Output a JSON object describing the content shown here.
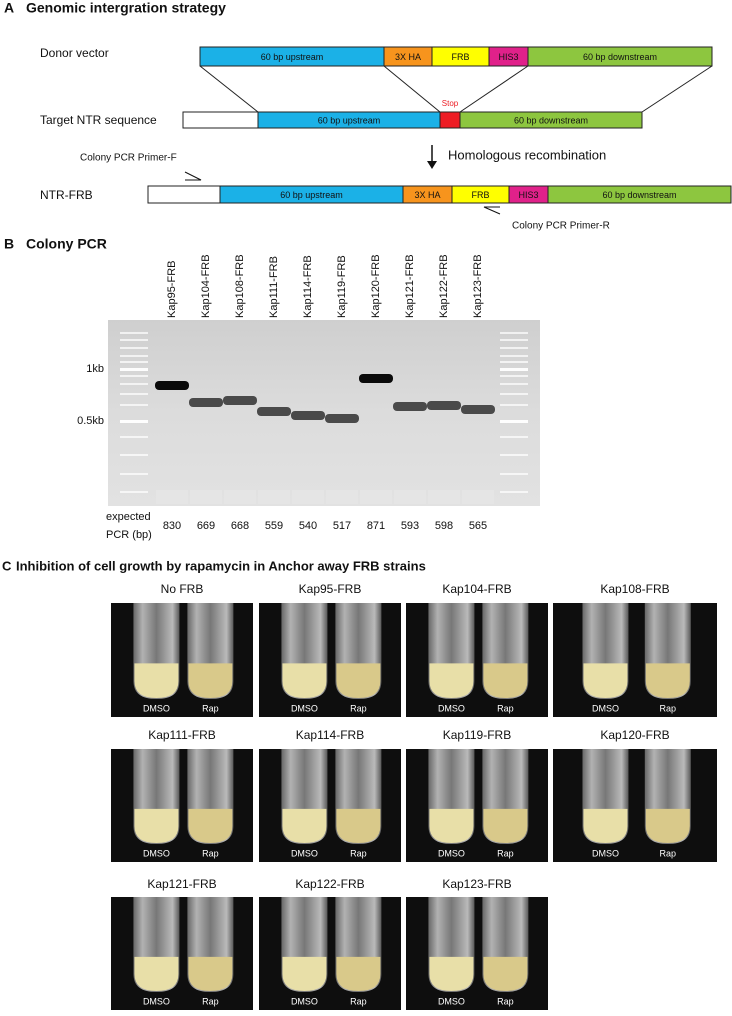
{
  "panel_a": {
    "label": "A",
    "title": "Genomic intergration strategy",
    "donor": {
      "label": "Donor vector",
      "segments": [
        {
          "text": "60 bp upstream",
          "color": "#1bb1e7"
        },
        {
          "text": "3X HA",
          "color": "#f7941d"
        },
        {
          "text": "FRB",
          "color": "#ffff00"
        },
        {
          "text": "HIS3",
          "color": "#e0218a"
        },
        {
          "text": "60 bp downstream",
          "color": "#8dc63f"
        }
      ]
    },
    "target": {
      "label": "Target NTR sequence",
      "stop": "Stop",
      "segments": [
        {
          "color": "#ffffff"
        },
        {
          "text": "60 bp upstream",
          "color": "#1bb1e7"
        },
        {
          "color": "#ed1c24"
        },
        {
          "text": "60 bp downstream",
          "color": "#8dc63f"
        }
      ]
    },
    "recombination": "Homologous recombination",
    "result": {
      "label": "NTR-FRB",
      "segments": [
        {
          "color": "#ffffff"
        },
        {
          "text": "60 bp upstream",
          "color": "#1bb1e7"
        },
        {
          "text": "3X HA",
          "color": "#f7941d"
        },
        {
          "text": "FRB",
          "color": "#ffff00"
        },
        {
          "text": "HIS3",
          "color": "#e0218a"
        },
        {
          "text": "60 bp downstream",
          "color": "#8dc63f"
        }
      ]
    },
    "primer_f": "Colony PCR Primer-F",
    "primer_r": "Colony PCR Primer-R"
  },
  "panel_b": {
    "label": "B",
    "title": "Colony PCR",
    "lanes": [
      "Kap95-FRB",
      "Kap104-FRB",
      "Kap108-FRB",
      "Kap111-FRB",
      "Kap114-FRB",
      "Kap119-FRB",
      "Kap120-FRB",
      "Kap121-FRB",
      "Kap122-FRB",
      "Kap123-FRB"
    ],
    "markers": [
      "1kb",
      "0.5kb"
    ],
    "expected_label": [
      "expected",
      "PCR (bp)"
    ],
    "expected": [
      830,
      669,
      668,
      559,
      540,
      517,
      871,
      593,
      598,
      565
    ]
  },
  "panel_c": {
    "label": "C",
    "title": "Inhibition of cell growth by rapamycin in Anchor away FRB strains",
    "strains": [
      "No FRB",
      "Kap95-FRB",
      "Kap104-FRB",
      "Kap108-FRB",
      "Kap111-FRB",
      "Kap114-FRB",
      "Kap119-FRB",
      "Kap120-FRB",
      "Kap121-FRB",
      "Kap122-FRB",
      "Kap123-FRB"
    ],
    "tube_labels": [
      "DMSO",
      "Rap"
    ]
  }
}
